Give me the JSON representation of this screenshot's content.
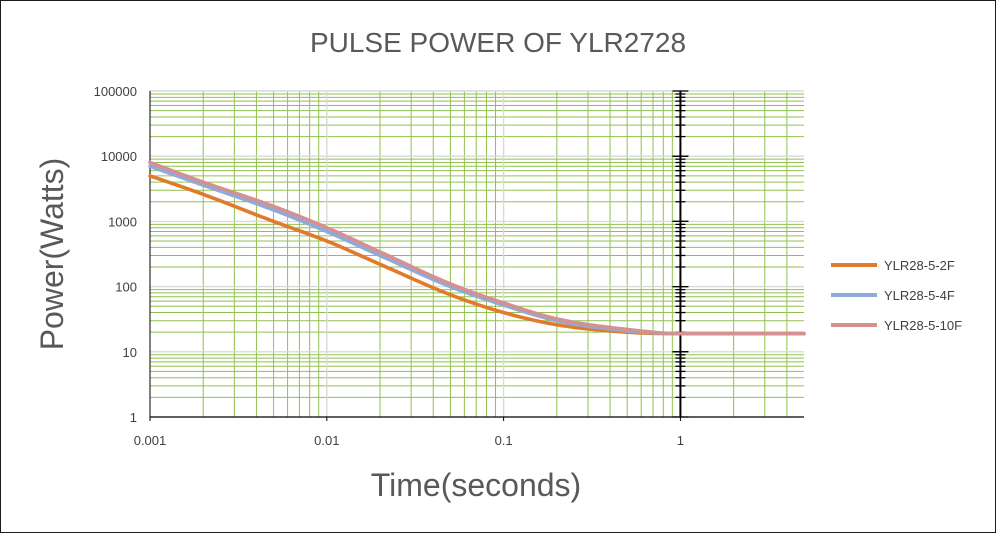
{
  "chart_data": {
    "type": "line",
    "title": "PULSE POWER OF  YLR2728",
    "xlabel": "Time(seconds)",
    "ylabel": "Power(Watts)",
    "x_scale": "log",
    "y_scale": "log",
    "xlim": [
      0.001,
      5
    ],
    "ylim": [
      1,
      100000
    ],
    "x_ticks": [
      "0.001",
      "0.01",
      "0.1",
      "1"
    ],
    "y_ticks": [
      "1",
      "10",
      "100",
      "1000",
      "10000",
      "100000"
    ],
    "grid": true,
    "legend_position": "right",
    "colors": {
      "grid_major": "#d9d9d9",
      "grid_minor": "#92c050",
      "axis": "#000000"
    },
    "series": [
      {
        "name": "YLR28-5-2F",
        "color": "#e07b2c",
        "points": [
          [
            0.001,
            5000
          ],
          [
            0.002,
            2600
          ],
          [
            0.005,
            1000
          ],
          [
            0.01,
            500
          ],
          [
            0.02,
            220
          ],
          [
            0.05,
            75
          ],
          [
            0.1,
            40
          ],
          [
            0.2,
            26
          ],
          [
            0.5,
            20
          ],
          [
            1,
            19
          ],
          [
            2,
            19
          ],
          [
            5,
            19
          ]
        ]
      },
      {
        "name": "YLR28-5-4F",
        "color": "#8eaadb",
        "points": [
          [
            0.001,
            7000
          ],
          [
            0.002,
            3600
          ],
          [
            0.005,
            1500
          ],
          [
            0.01,
            700
          ],
          [
            0.02,
            300
          ],
          [
            0.05,
            100
          ],
          [
            0.1,
            52
          ],
          [
            0.2,
            30
          ],
          [
            0.5,
            21
          ],
          [
            1,
            19
          ],
          [
            2,
            19
          ],
          [
            5,
            19
          ]
        ]
      },
      {
        "name": "YLR28-5-10F",
        "color": "#d4918f",
        "points": [
          [
            0.001,
            8000
          ],
          [
            0.002,
            4000
          ],
          [
            0.005,
            1700
          ],
          [
            0.01,
            800
          ],
          [
            0.02,
            340
          ],
          [
            0.05,
            110
          ],
          [
            0.1,
            56
          ],
          [
            0.2,
            32
          ],
          [
            0.5,
            22
          ],
          [
            1,
            19
          ],
          [
            2,
            19
          ],
          [
            5,
            19
          ]
        ]
      }
    ]
  }
}
